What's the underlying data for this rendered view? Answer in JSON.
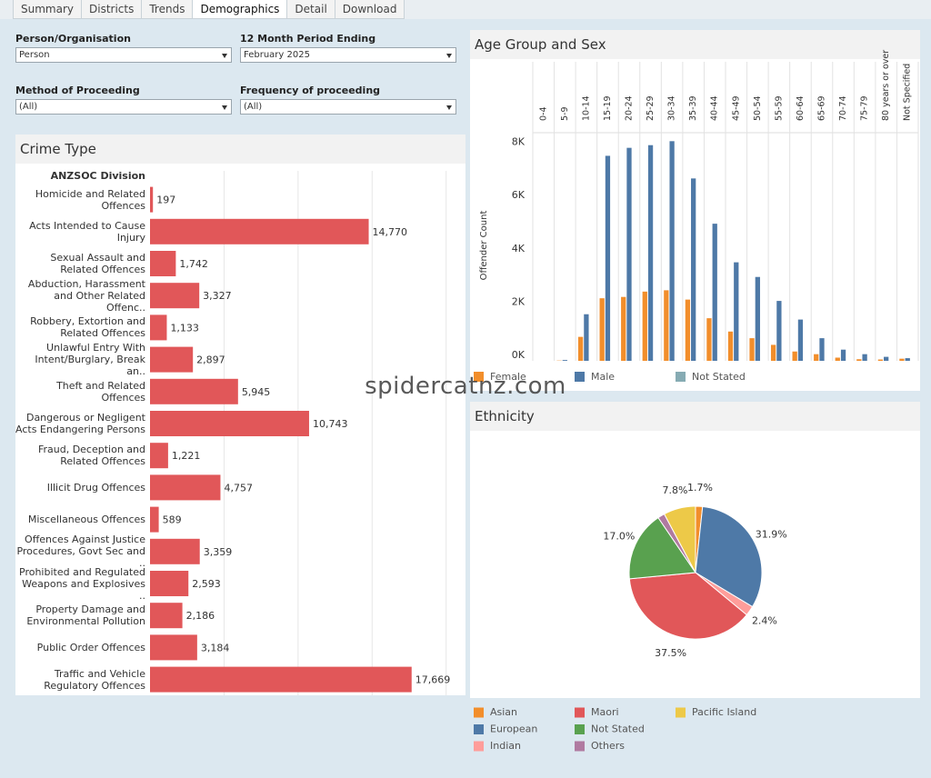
{
  "tabs": [
    "Summary",
    "Districts",
    "Trends",
    "Demographics",
    "Detail",
    "Download"
  ],
  "active_tab": 3,
  "filters": [
    {
      "label": "Person/Organisation",
      "value": "Person"
    },
    {
      "label": "12 Month Period Ending",
      "value": "February 2025"
    },
    {
      "label": "Method of Proceeding",
      "value": "(All)"
    },
    {
      "label": "Frequency of proceeding",
      "value": "(All)"
    }
  ],
  "watermark": "spidercatnz.com",
  "chart_data": [
    {
      "type": "bar",
      "orientation": "horizontal",
      "title": "Crime Type",
      "category_header": "ANZSOC Division",
      "categories": [
        "Homicide and Related Offences",
        "Acts Intended to Cause Injury",
        "Sexual Assault and Related Offences",
        "Abduction, Harassment and Other Related Offenc..",
        "Robbery, Extortion and Related Offences",
        "Unlawful Entry With Intent/Burglary, Break an..",
        "Theft and Related Offences",
        "Dangerous or Negligent Acts Endangering Persons",
        "Fraud, Deception and Related Offences",
        "Illicit Drug Offences",
        "Miscellaneous Offences",
        "Offences Against Justice Procedures, Govt Sec and ..",
        "Prohibited and Regulated Weapons and Explosives ..",
        "Property Damage and Environmental Pollution",
        "Public Order Offences",
        "Traffic and Vehicle Regulatory Offences"
      ],
      "values": [
        197,
        14770,
        1742,
        3327,
        1133,
        2897,
        5945,
        10743,
        1221,
        4757,
        589,
        3359,
        2593,
        2186,
        3184,
        17669
      ],
      "value_labels": [
        "197",
        "14,770",
        "1,742",
        "3,327",
        "1,133",
        "2,897",
        "5,945",
        "10,743",
        "1,221",
        "4,757",
        "589",
        "3,359",
        "2,593",
        "2,186",
        "3,184",
        "17,669"
      ],
      "color": "#e15759",
      "xlim": [
        0,
        21000
      ],
      "xticks": [
        5000,
        10000,
        15000,
        20000
      ],
      "xtick_labels": false,
      "grid": true
    },
    {
      "type": "grouped_bar",
      "title": "Age Group and Sex",
      "y_label": "Offender Count",
      "categories": [
        "0-4",
        "5-9",
        "10-14",
        "15-19",
        "20-24",
        "25-29",
        "30-34",
        "35-39",
        "40-44",
        "45-49",
        "50-54",
        "55-59",
        "60-64",
        "65-69",
        "70-74",
        "75-79",
        "80 years or over",
        "Not Specified"
      ],
      "series": [
        {
          "name": "Female",
          "color": "#f28e2b",
          "values": [
            0,
            10,
            900,
            2350,
            2400,
            2600,
            2650,
            2300,
            1600,
            1100,
            850,
            600,
            350,
            250,
            120,
            60,
            50,
            80
          ]
        },
        {
          "name": "Male",
          "color": "#4e79a7",
          "values": [
            0,
            30,
            1750,
            7700,
            8000,
            8100,
            8250,
            6850,
            5150,
            3700,
            3150,
            2250,
            1550,
            850,
            420,
            250,
            150,
            100
          ]
        },
        {
          "name": "Not Stated",
          "color": "#86abb3",
          "values": [
            0,
            0,
            0,
            0,
            0,
            0,
            0,
            0,
            0,
            0,
            0,
            0,
            0,
            0,
            0,
            0,
            0,
            0
          ]
        }
      ],
      "ylim": [
        0,
        8500
      ],
      "yticks": [
        {
          "value": 0,
          "label": "0K"
        },
        {
          "value": 2000,
          "label": "2K"
        },
        {
          "value": 4000,
          "label": "4K"
        },
        {
          "value": 6000,
          "label": "6K"
        },
        {
          "value": 8000,
          "label": "8K"
        }
      ],
      "grid": false
    },
    {
      "type": "pie",
      "title": "Ethnicity",
      "categories": [
        "Asian",
        "European",
        "Indian",
        "Maori",
        "Not Stated",
        "Others",
        "Pacific Island"
      ],
      "values": [
        1.7,
        31.9,
        2.4,
        37.5,
        17.0,
        1.7,
        7.8
      ],
      "value_labels": [
        "1.7%",
        "31.9%",
        "2.4%",
        "37.5%",
        "17.0%",
        null,
        "7.8%"
      ],
      "colors": [
        "#f28e2b",
        "#4e79a7",
        "#ff9d9a",
        "#e15759",
        "#59a14f",
        "#b07aa1",
        "#edc948"
      ]
    }
  ]
}
